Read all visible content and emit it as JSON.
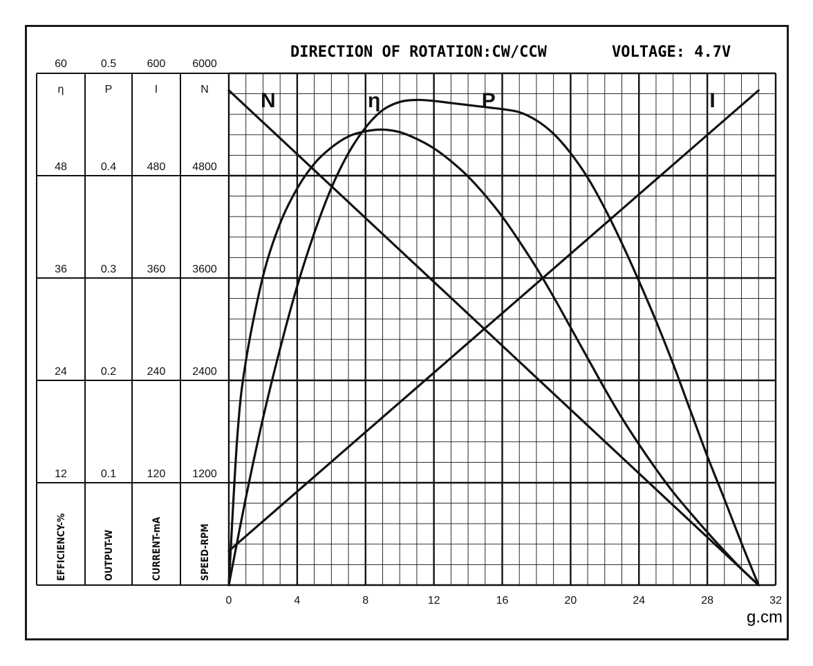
{
  "chart_data": {
    "type": "line",
    "title": "DIRECTION OF ROTATION:CW/CCW",
    "voltage_label": "VOLTAGE: 4.7V",
    "xlabel": "g.cm",
    "x_ticks": [
      "0",
      "4",
      "8",
      "12",
      "16",
      "20",
      "24",
      "28",
      "32"
    ],
    "xlim": [
      0,
      32
    ],
    "grid": true,
    "axes": [
      {
        "symbol": "η",
        "label": "EFFICIENCY-%",
        "range": [
          0,
          60
        ],
        "ticks": [
          "12",
          "24",
          "36",
          "48",
          "60"
        ]
      },
      {
        "symbol": "P",
        "label": "OUTPUT-W",
        "range": [
          0,
          0.5
        ],
        "ticks": [
          "0.1",
          "0.2",
          "0.3",
          "0.4",
          "0.5"
        ]
      },
      {
        "symbol": "I",
        "label": "CURRENT-mA",
        "range": [
          0,
          600
        ],
        "ticks": [
          "120",
          "240",
          "360",
          "480",
          "600"
        ]
      },
      {
        "symbol": "N",
        "label": "SPEED-RPM",
        "range": [
          0,
          6000
        ],
        "ticks": [
          "1200",
          "2400",
          "3600",
          "4800",
          "6000"
        ]
      }
    ],
    "series": [
      {
        "name": "N",
        "axis": "N",
        "x": [
          0,
          31
        ],
        "y": [
          5800,
          0
        ]
      },
      {
        "name": "I",
        "axis": "I",
        "x": [
          0,
          31
        ],
        "y": [
          40,
          580
        ]
      },
      {
        "name": "η",
        "axis": "η",
        "x": [
          0,
          0.5,
          1,
          2,
          3,
          4,
          5,
          6,
          7,
          8,
          9,
          10,
          11,
          12,
          13,
          14,
          15,
          16,
          17,
          18,
          19,
          20,
          21,
          22,
          23,
          24,
          25,
          26,
          27,
          28,
          29,
          30,
          31
        ],
        "y": [
          0,
          17.5,
          26.3,
          36.2,
          42.4,
          46.5,
          49.4,
          51.3,
          52.6,
          53.2,
          53.4,
          53.1,
          52.3,
          51.2,
          49.7,
          47.9,
          45.7,
          43.2,
          40.3,
          37.2,
          33.8,
          30.2,
          26.6,
          23.0,
          19.6,
          16.5,
          13.6,
          10.9,
          8.5,
          6.2,
          4.0,
          1.9,
          0
        ]
      },
      {
        "name": "P",
        "axis": "P",
        "x": [
          0,
          1,
          2,
          3,
          4,
          5,
          6,
          7,
          8,
          9,
          10,
          11,
          12,
          13,
          14,
          15,
          15.5,
          16,
          17,
          18,
          19,
          20,
          21,
          22,
          23,
          24,
          25,
          26,
          27,
          28,
          29,
          30,
          31
        ],
        "y": [
          0,
          0.0856,
          0.163,
          0.231,
          0.292,
          0.344,
          0.388,
          0.422,
          0.447,
          0.464,
          0.472,
          0.474,
          0.473,
          0.471,
          0.469,
          0.467,
          0.466,
          0.465,
          0.462,
          0.454,
          0.441,
          0.422,
          0.398,
          0.368,
          0.334,
          0.297,
          0.258,
          0.216,
          0.171,
          0.126,
          0.084,
          0.041,
          0
        ]
      }
    ],
    "curve_labels": [
      {
        "text": "N",
        "x": 2.3
      },
      {
        "text": "η",
        "x": 8.5
      },
      {
        "text": "P",
        "x": 15.2
      },
      {
        "text": "I",
        "x": 28.3
      }
    ]
  }
}
